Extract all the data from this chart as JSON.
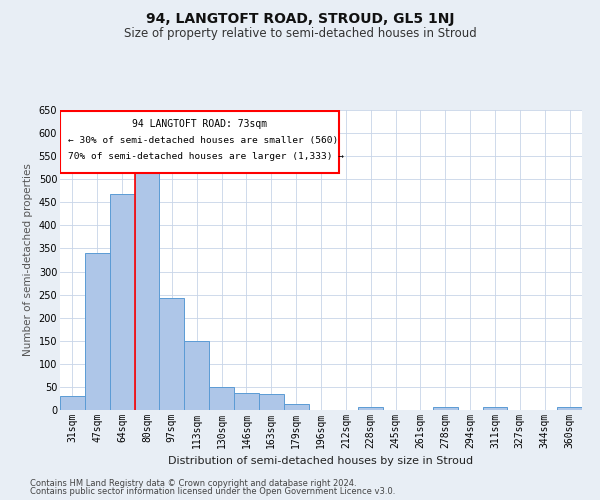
{
  "title": "94, LANGTOFT ROAD, STROUD, GL5 1NJ",
  "subtitle": "Size of property relative to semi-detached houses in Stroud",
  "xlabel": "Distribution of semi-detached houses by size in Stroud",
  "ylabel": "Number of semi-detached properties",
  "footer1": "Contains HM Land Registry data © Crown copyright and database right 2024.",
  "footer2": "Contains public sector information licensed under the Open Government Licence v3.0.",
  "categories": [
    "31sqm",
    "47sqm",
    "64sqm",
    "80sqm",
    "97sqm",
    "113sqm",
    "130sqm",
    "146sqm",
    "163sqm",
    "179sqm",
    "196sqm",
    "212sqm",
    "228sqm",
    "245sqm",
    "261sqm",
    "278sqm",
    "294sqm",
    "311sqm",
    "327sqm",
    "344sqm",
    "360sqm"
  ],
  "values": [
    30,
    340,
    468,
    533,
    242,
    150,
    50,
    37,
    35,
    13,
    0,
    0,
    7,
    0,
    0,
    6,
    0,
    6,
    0,
    0,
    6
  ],
  "bar_color": "#aec6e8",
  "bar_edge_color": "#5b9bd5",
  "vline_x": 2.5,
  "vline_color": "red",
  "annotation_title": "94 LANGTOFT ROAD: 73sqm",
  "annotation_line1": "← 30% of semi-detached houses are smaller (560)",
  "annotation_line2": "70% of semi-detached houses are larger (1,333) →",
  "annotation_box_color": "red",
  "ylim": [
    0,
    650
  ],
  "yticks": [
    0,
    50,
    100,
    150,
    200,
    250,
    300,
    350,
    400,
    450,
    500,
    550,
    600,
    650
  ],
  "bg_color": "#e8eef5",
  "plot_bg_color": "#ffffff",
  "grid_color": "#c8d4e8",
  "title_fontsize": 10,
  "subtitle_fontsize": 8.5,
  "xlabel_fontsize": 8,
  "ylabel_fontsize": 7.5,
  "tick_fontsize": 7,
  "footer_fontsize": 6
}
